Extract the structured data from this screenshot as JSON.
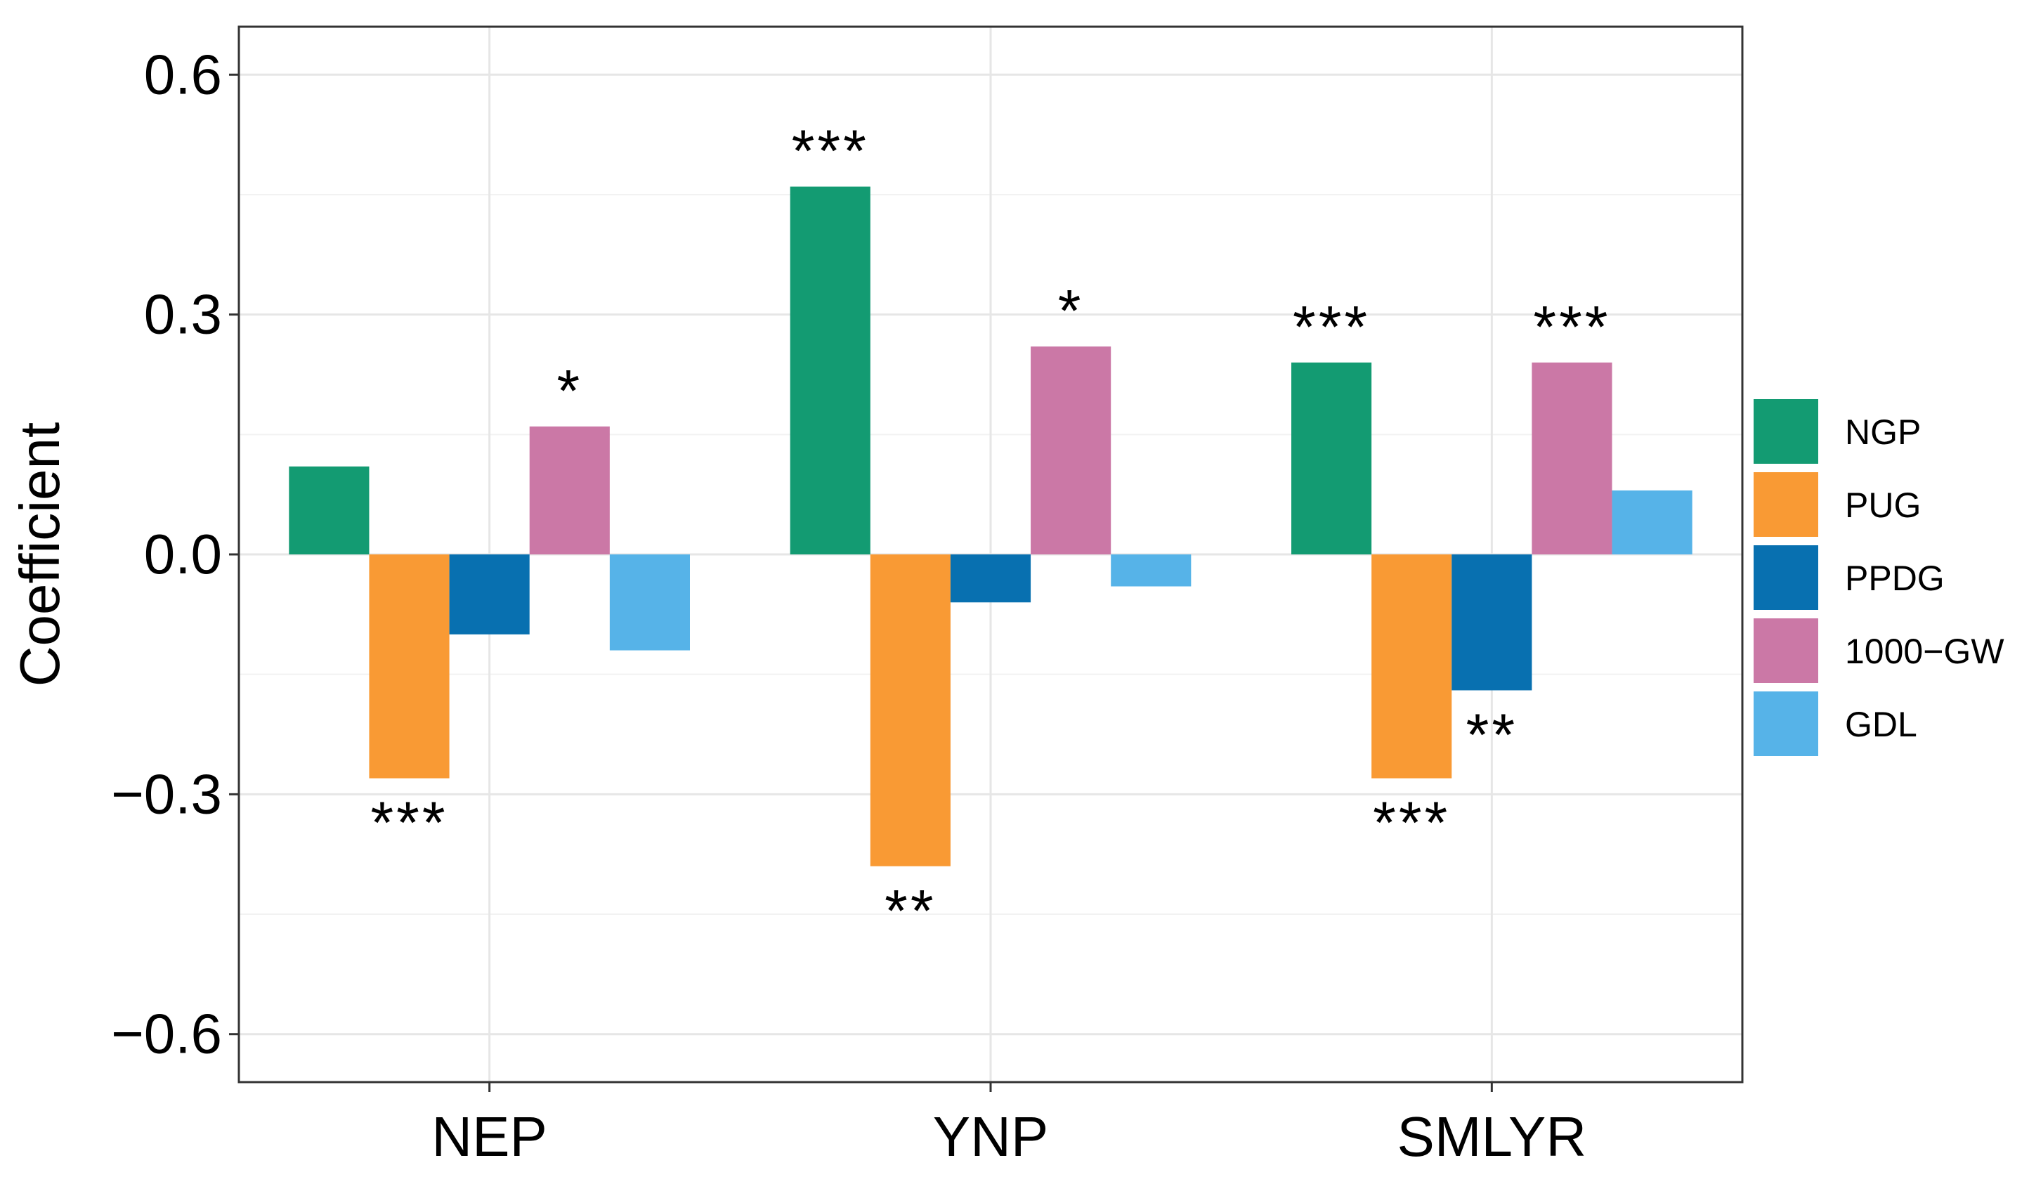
{
  "chart_data": {
    "type": "bar",
    "title": "",
    "xlabel": "",
    "ylabel": "Coefficient",
    "ylim": [
      -0.66,
      0.66
    ],
    "yticks": [
      -0.6,
      -0.3,
      0.0,
      0.3,
      0.6
    ],
    "ytick_labels": [
      "−0.6",
      "−0.3",
      "0.0",
      "0.3",
      "0.6"
    ],
    "categories": [
      "NEP",
      "YNP",
      "SMLYR"
    ],
    "grid": true,
    "legend_position": "right",
    "series": [
      {
        "name": "NGP",
        "color": "#139B72",
        "values": [
          0.11,
          0.46,
          0.24
        ],
        "sig": [
          "",
          "***",
          "***"
        ]
      },
      {
        "name": "PUG",
        "color": "#F99A34",
        "values": [
          -0.28,
          -0.39,
          -0.28
        ],
        "sig": [
          "***",
          "**",
          "***"
        ]
      },
      {
        "name": "PPDG",
        "color": "#0870B0",
        "values": [
          -0.1,
          -0.06,
          -0.17
        ],
        "sig": [
          "",
          "",
          "**"
        ]
      },
      {
        "name": "1000−GW",
        "color": "#CB78A6",
        "values": [
          0.16,
          0.26,
          0.24
        ],
        "sig": [
          "*",
          "*",
          "***"
        ]
      },
      {
        "name": "GDL",
        "color": "#56B3E8",
        "values": [
          -0.12,
          -0.04,
          0.08
        ],
        "sig": [
          "",
          "",
          ""
        ]
      }
    ]
  }
}
